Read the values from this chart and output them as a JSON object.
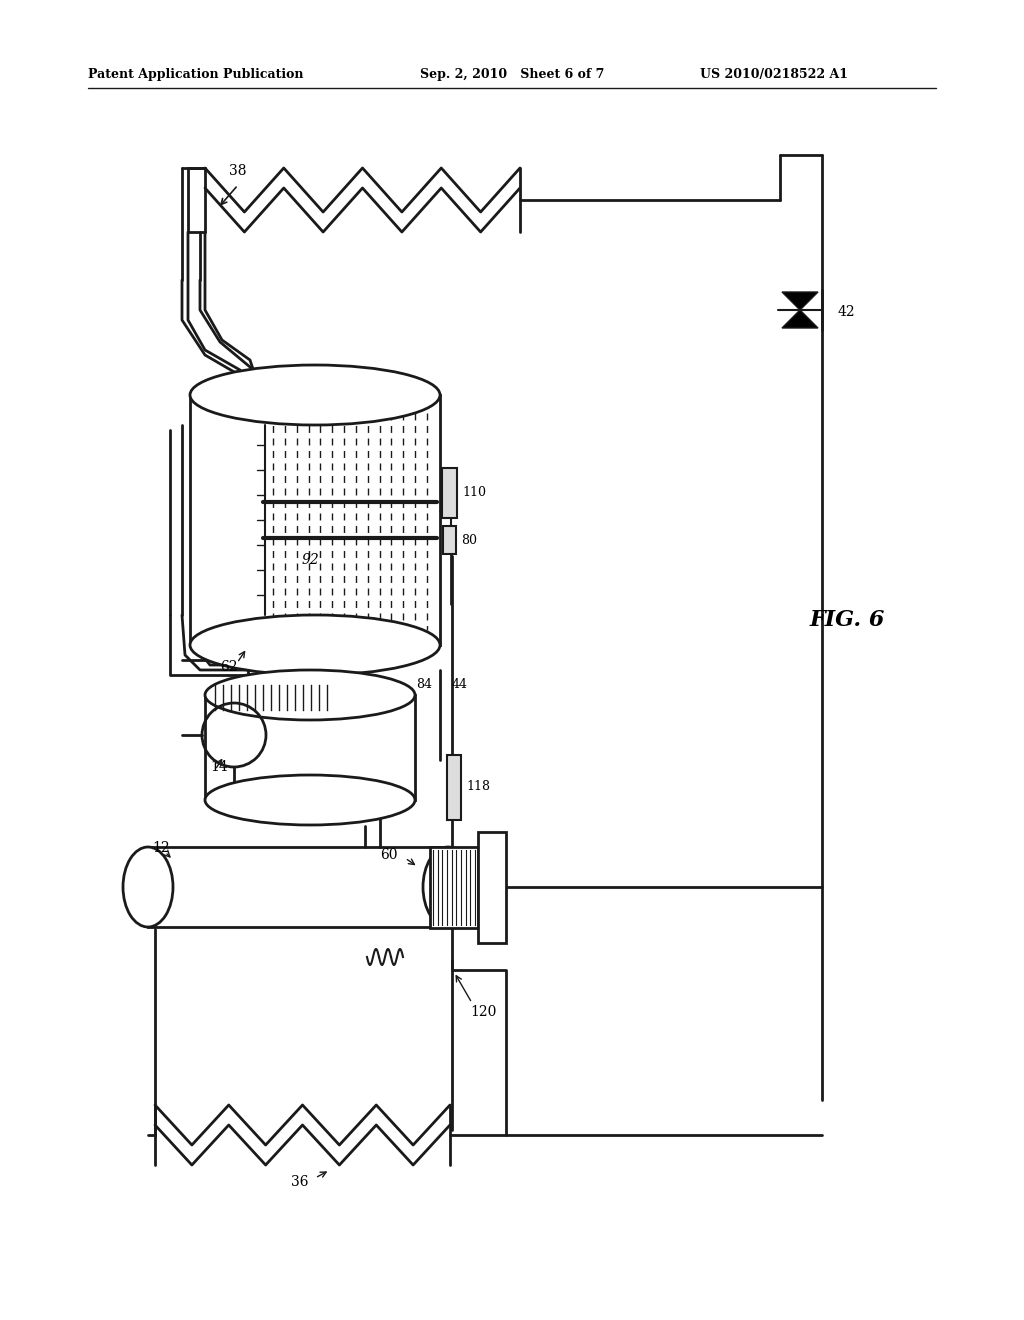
{
  "bg_color": "#ffffff",
  "line_color": "#1a1a1a",
  "header_left": "Patent Application Publication",
  "header_mid": "Sep. 2, 2010   Sheet 6 of 7",
  "header_right": "US 2010/0218522 A1",
  "fig_label": "FIG. 6"
}
